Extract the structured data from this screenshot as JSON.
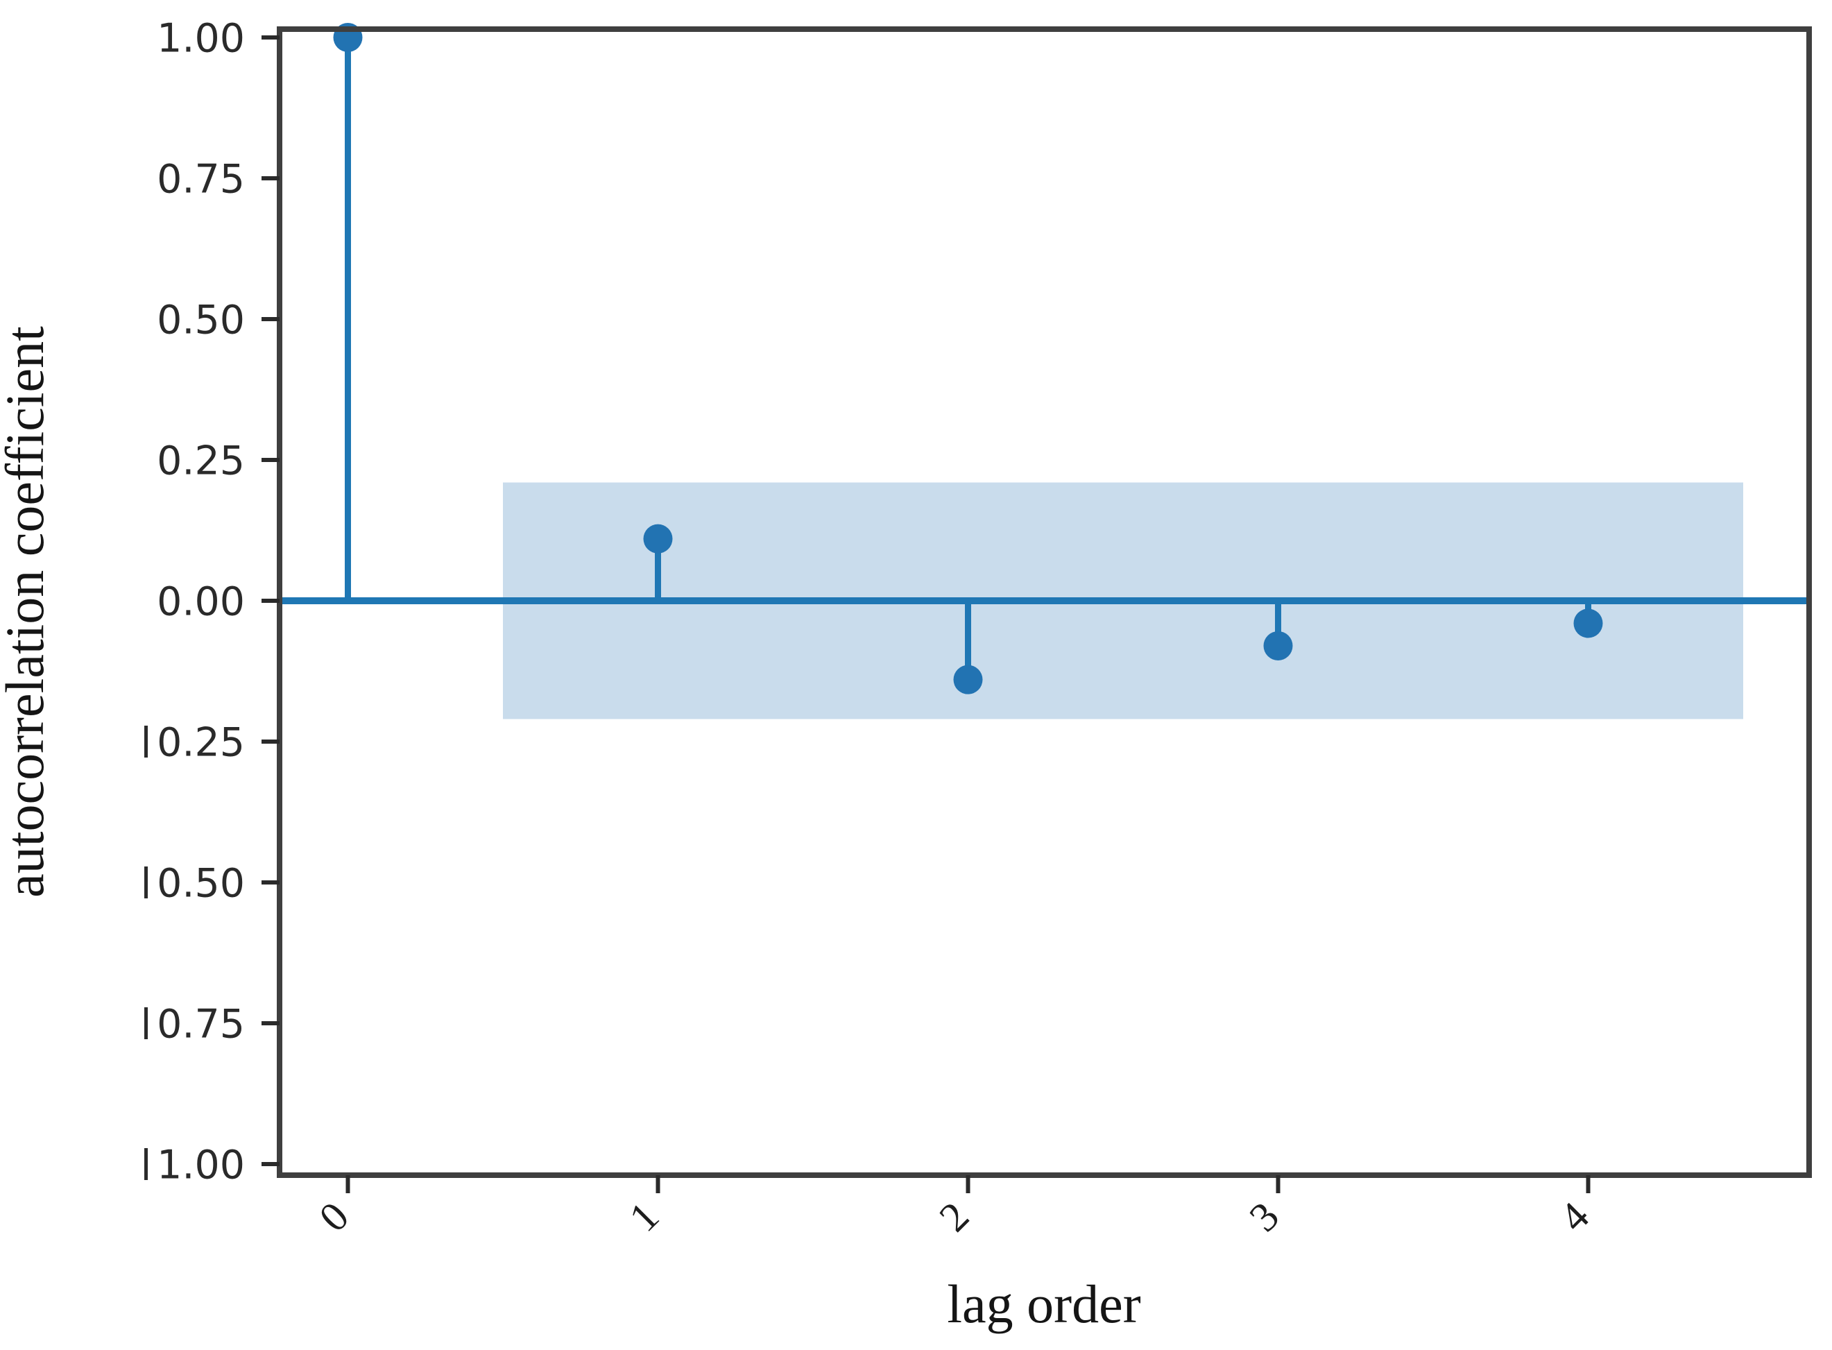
{
  "chart_data": {
    "type": "stem",
    "title": "",
    "xlabel": "lag order",
    "ylabel": "autocorrelation coefficient",
    "x": [
      0,
      1,
      2,
      3,
      4
    ],
    "x_tick_labels": [
      "0",
      "1",
      "2",
      "3",
      "4"
    ],
    "x_tick_rotation_deg": 45,
    "values": [
      1.0,
      0.11,
      -0.14,
      -0.08,
      -0.04
    ],
    "series_name": "autocorrelation",
    "zero_line": 0.0,
    "confidence_band": {
      "low": -0.21,
      "high": 0.21,
      "x_start": 0.5,
      "x_end": 4.5
    },
    "xlim": [
      -0.22,
      4.72
    ],
    "ylim": [
      -1.02,
      1.02
    ],
    "y_ticks": [
      1.0,
      0.75,
      0.5,
      0.25,
      0.0,
      -0.25,
      -0.5,
      -0.75,
      -1.0
    ],
    "y_tick_labels": [
      "1.00",
      "0.75",
      "0.50",
      "0.25",
      "0.00",
      "0.25",
      "0.50",
      "0.75",
      "1.00"
    ],
    "grid": false,
    "legend": null,
    "colors": {
      "stem": "#1f77b4",
      "marker": "#2273b2",
      "band": "#c9dcec",
      "spine": "#3f3f3f",
      "tick_mark": "#2a2a2a",
      "tick_text": "#2a2a2a",
      "label_text": "#151515"
    }
  }
}
